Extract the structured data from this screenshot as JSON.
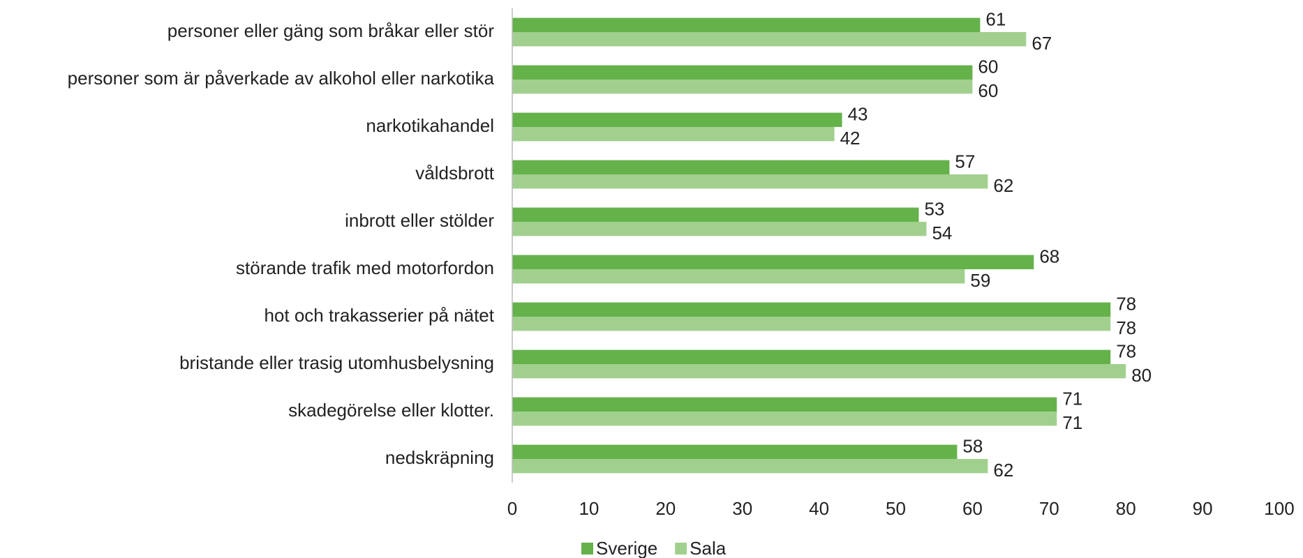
{
  "chart_data": {
    "type": "bar",
    "orientation": "horizontal",
    "categories": [
      "personer eller gäng som bråkar eller stör",
      "personer som är påverkade av alkohol eller narkotika",
      "narkotikahandel",
      "våldsbrott",
      "inbrott eller stölder",
      "störande trafik med motorfordon",
      "hot och trakasserier på nätet",
      "bristande eller trasig utomhusbelysning",
      "skadegörelse eller klotter.",
      "nedskräpning"
    ],
    "series": [
      {
        "name": "Sverige",
        "color": "#65b24b",
        "values": [
          61,
          60,
          43,
          57,
          53,
          68,
          78,
          78,
          71,
          58
        ]
      },
      {
        "name": "Sala",
        "color": "#a1d08e",
        "values": [
          67,
          60,
          42,
          62,
          54,
          59,
          78,
          80,
          71,
          62
        ]
      }
    ],
    "xlim": [
      0,
      100
    ],
    "xticks": [
      0,
      10,
      20,
      30,
      40,
      50,
      60,
      70,
      80,
      90,
      100
    ],
    "grid": false,
    "legend": "bottom"
  }
}
